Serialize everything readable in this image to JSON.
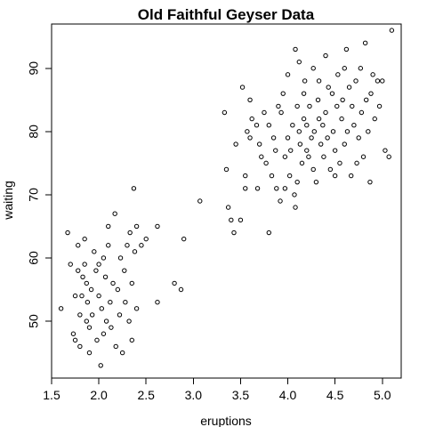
{
  "chart_data": {
    "type": "scatter",
    "title": "Old Faithful Geyser Data",
    "xlabel": "eruptions",
    "ylabel": "waiting",
    "xlim": [
      1.5,
      5.2
    ],
    "ylim": [
      41,
      97
    ],
    "xticks": [
      1.5,
      2.0,
      2.5,
      3.0,
      3.5,
      4.0,
      4.5,
      5.0
    ],
    "xtick_labels": [
      "1.5",
      "2.0",
      "2.5",
      "3.0",
      "3.5",
      "4.0",
      "4.5",
      "5.0"
    ],
    "yticks": [
      50,
      60,
      70,
      80,
      90
    ],
    "ytick_labels": [
      "50",
      "60",
      "70",
      "80",
      "90"
    ],
    "marker": "open-circle",
    "color": "#000000",
    "grid": false,
    "points": [
      [
        1.6,
        52
      ],
      [
        1.67,
        64
      ],
      [
        1.7,
        59
      ],
      [
        1.73,
        48
      ],
      [
        1.75,
        47
      ],
      [
        1.75,
        54
      ],
      [
        1.78,
        58
      ],
      [
        1.78,
        62
      ],
      [
        1.8,
        46
      ],
      [
        1.8,
        51
      ],
      [
        1.82,
        54
      ],
      [
        1.83,
        57
      ],
      [
        1.85,
        59
      ],
      [
        1.85,
        63
      ],
      [
        1.87,
        50
      ],
      [
        1.87,
        56
      ],
      [
        1.88,
        53
      ],
      [
        1.9,
        45
      ],
      [
        1.9,
        49
      ],
      [
        1.92,
        55
      ],
      [
        1.93,
        51
      ],
      [
        1.95,
        61
      ],
      [
        1.97,
        58
      ],
      [
        1.98,
        47
      ],
      [
        2.0,
        54
      ],
      [
        2.0,
        59
      ],
      [
        2.02,
        43
      ],
      [
        2.03,
        52
      ],
      [
        2.05,
        48
      ],
      [
        2.05,
        60
      ],
      [
        2.07,
        57
      ],
      [
        2.08,
        50
      ],
      [
        2.1,
        62
      ],
      [
        2.1,
        65
      ],
      [
        2.12,
        53
      ],
      [
        2.13,
        49
      ],
      [
        2.15,
        56
      ],
      [
        2.17,
        67
      ],
      [
        2.18,
        46
      ],
      [
        2.2,
        55
      ],
      [
        2.22,
        51
      ],
      [
        2.23,
        60
      ],
      [
        2.25,
        45
      ],
      [
        2.27,
        58
      ],
      [
        2.28,
        53
      ],
      [
        2.3,
        62
      ],
      [
        2.32,
        50
      ],
      [
        2.33,
        64
      ],
      [
        2.35,
        47
      ],
      [
        2.35,
        56
      ],
      [
        2.37,
        71
      ],
      [
        2.38,
        61
      ],
      [
        2.4,
        52
      ],
      [
        2.4,
        65
      ],
      [
        2.45,
        62
      ],
      [
        2.5,
        63
      ],
      [
        2.62,
        65
      ],
      [
        2.62,
        53
      ],
      [
        2.8,
        56
      ],
      [
        2.87,
        55
      ],
      [
        2.9,
        63
      ],
      [
        3.07,
        69
      ],
      [
        3.33,
        83
      ],
      [
        3.35,
        74
      ],
      [
        3.37,
        68
      ],
      [
        3.4,
        66
      ],
      [
        3.43,
        64
      ],
      [
        3.45,
        78
      ],
      [
        3.5,
        66
      ],
      [
        3.52,
        87
      ],
      [
        3.55,
        71
      ],
      [
        3.55,
        73
      ],
      [
        3.57,
        80
      ],
      [
        3.6,
        85
      ],
      [
        3.6,
        79
      ],
      [
        3.62,
        82
      ],
      [
        3.67,
        81
      ],
      [
        3.68,
        71
      ],
      [
        3.7,
        78
      ],
      [
        3.72,
        76
      ],
      [
        3.75,
        83
      ],
      [
        3.77,
        75
      ],
      [
        3.8,
        64
      ],
      [
        3.8,
        81
      ],
      [
        3.83,
        73
      ],
      [
        3.85,
        79
      ],
      [
        3.87,
        77
      ],
      [
        3.88,
        71
      ],
      [
        3.9,
        84
      ],
      [
        3.92,
        69
      ],
      [
        3.93,
        83
      ],
      [
        3.95,
        86
      ],
      [
        3.97,
        71
      ],
      [
        3.97,
        76
      ],
      [
        4.0,
        89
      ],
      [
        4.0,
        79
      ],
      [
        4.02,
        73
      ],
      [
        4.03,
        77
      ],
      [
        4.05,
        81
      ],
      [
        4.07,
        70
      ],
      [
        4.08,
        93
      ],
      [
        4.08,
        68
      ],
      [
        4.1,
        84
      ],
      [
        4.1,
        72
      ],
      [
        4.12,
        91
      ],
      [
        4.12,
        80
      ],
      [
        4.13,
        78
      ],
      [
        4.15,
        75
      ],
      [
        4.17,
        86
      ],
      [
        4.17,
        82
      ],
      [
        4.18,
        88
      ],
      [
        4.2,
        81
      ],
      [
        4.2,
        77
      ],
      [
        4.22,
        76
      ],
      [
        4.23,
        84
      ],
      [
        4.25,
        79
      ],
      [
        4.27,
        90
      ],
      [
        4.27,
        74
      ],
      [
        4.28,
        80
      ],
      [
        4.3,
        72
      ],
      [
        4.32,
        85
      ],
      [
        4.33,
        88
      ],
      [
        4.33,
        82
      ],
      [
        4.35,
        78
      ],
      [
        4.37,
        81
      ],
      [
        4.38,
        76
      ],
      [
        4.4,
        92
      ],
      [
        4.4,
        83
      ],
      [
        4.42,
        79
      ],
      [
        4.43,
        87
      ],
      [
        4.45,
        74
      ],
      [
        4.47,
        86
      ],
      [
        4.48,
        80
      ],
      [
        4.5,
        73
      ],
      [
        4.5,
        77
      ],
      [
        4.52,
        84
      ],
      [
        4.53,
        89
      ],
      [
        4.55,
        75
      ],
      [
        4.57,
        82
      ],
      [
        4.58,
        85
      ],
      [
        4.6,
        90
      ],
      [
        4.6,
        78
      ],
      [
        4.62,
        93
      ],
      [
        4.63,
        80
      ],
      [
        4.65,
        87
      ],
      [
        4.67,
        73
      ],
      [
        4.68,
        84
      ],
      [
        4.7,
        81
      ],
      [
        4.72,
        88
      ],
      [
        4.73,
        75
      ],
      [
        4.75,
        79
      ],
      [
        4.77,
        90
      ],
      [
        4.78,
        83
      ],
      [
        4.8,
        76
      ],
      [
        4.82,
        94
      ],
      [
        4.83,
        85
      ],
      [
        4.85,
        80
      ],
      [
        4.87,
        72
      ],
      [
        4.88,
        86
      ],
      [
        4.9,
        89
      ],
      [
        4.92,
        82
      ],
      [
        4.95,
        88
      ],
      [
        4.97,
        84
      ],
      [
        5.0,
        88
      ],
      [
        5.03,
        77
      ],
      [
        5.07,
        76
      ],
      [
        5.1,
        96
      ]
    ]
  }
}
